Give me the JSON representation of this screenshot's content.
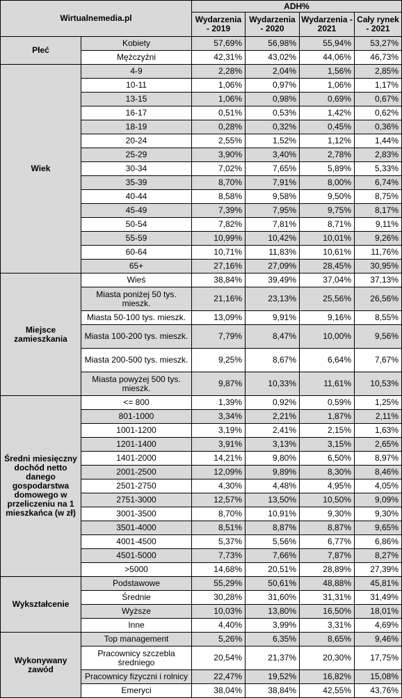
{
  "header": {
    "source": "Wirtualnemedia.pl",
    "metric": "ADH%",
    "columns": [
      "Wydarzenia - 2019",
      "Wydarzenia - 2020",
      "Wydarzenia - 2021",
      "Cały rynek - 2021"
    ]
  },
  "colors": {
    "gray": "#d9d9d9",
    "white": "#ffffff",
    "border": "#000000"
  },
  "groups": [
    {
      "label": "Płeć",
      "rows": [
        {
          "label": "Kobiety",
          "values": [
            "57,69%",
            "56,98%",
            "55,94%",
            "53,27%"
          ]
        },
        {
          "label": "Mężczyźni",
          "values": [
            "42,31%",
            "43,02%",
            "44,06%",
            "46,73%"
          ]
        }
      ]
    },
    {
      "label": "Wiek",
      "rows": [
        {
          "label": "4-9",
          "values": [
            "2,28%",
            "2,04%",
            "1,56%",
            "2,85%"
          ]
        },
        {
          "label": "10-11",
          "values": [
            "1,06%",
            "0,97%",
            "1,06%",
            "1,17%"
          ]
        },
        {
          "label": "13-15",
          "values": [
            "1,06%",
            "0,98%",
            "0,69%",
            "0,67%"
          ]
        },
        {
          "label": "16-17",
          "values": [
            "0,51%",
            "0,53%",
            "1,42%",
            "0,62%"
          ]
        },
        {
          "label": "18-19",
          "values": [
            "0,28%",
            "0,32%",
            "0,45%",
            "0,36%"
          ]
        },
        {
          "label": "20-24",
          "values": [
            "2,55%",
            "1,52%",
            "1,12%",
            "1,44%"
          ]
        },
        {
          "label": "25-29",
          "values": [
            "3,90%",
            "3,40%",
            "2,78%",
            "2,83%"
          ]
        },
        {
          "label": "30-34",
          "values": [
            "7,02%",
            "7,65%",
            "5,89%",
            "5,33%"
          ]
        },
        {
          "label": "35-39",
          "values": [
            "8,70%",
            "7,91%",
            "8,00%",
            "6,74%"
          ]
        },
        {
          "label": "40-44",
          "values": [
            "8,58%",
            "9,58%",
            "9,50%",
            "8,75%"
          ]
        },
        {
          "label": "45-49",
          "values": [
            "7,39%",
            "7,95%",
            "9,75%",
            "8,17%"
          ]
        },
        {
          "label": "50-54",
          "values": [
            "7,82%",
            "7,81%",
            "8,71%",
            "9,11%"
          ]
        },
        {
          "label": "55-59",
          "values": [
            "10,99%",
            "10,42%",
            "10,01%",
            "9,26%"
          ]
        },
        {
          "label": "60-64",
          "values": [
            "10,71%",
            "11,83%",
            "10,61%",
            "11,76%"
          ]
        },
        {
          "label": "65+",
          "values": [
            "27,16%",
            "27,09%",
            "28,45%",
            "30,95%"
          ]
        }
      ]
    },
    {
      "label": "Miejsce zamieszkania",
      "rows": [
        {
          "label": "Wieś",
          "values": [
            "38,84%",
            "39,49%",
            "37,04%",
            "37,13%"
          ]
        },
        {
          "label": "Miasta poniżej 50 tys. mieszk.",
          "values": [
            "21,16%",
            "23,13%",
            "25,56%",
            "26,56%"
          ]
        },
        {
          "label": "Miasta 50-100 tys. mieszk.",
          "values": [
            "13,09%",
            "9,91%",
            "9,16%",
            "8,55%"
          ]
        },
        {
          "label": "Miasta 100-200 tys. mieszk.",
          "values": [
            "7,79%",
            "8,47%",
            "10,00%",
            "9,56%"
          ]
        },
        {
          "label": "Miasta 200-500 tys. mieszk.",
          "values": [
            "9,25%",
            "8,67%",
            "6,64%",
            "7,67%"
          ]
        },
        {
          "label": "Miasta powyżej 500 tys. mieszk.",
          "values": [
            "9,87%",
            "10,33%",
            "11,61%",
            "10,53%"
          ]
        }
      ]
    },
    {
      "label": "Średni miesięczny dochód netto danego gospodarstwa domowego w przeliczeniu na 1 mieszkańca (w zł)",
      "rows": [
        {
          "label": "<= 800",
          "values": [
            "1,39%",
            "0,92%",
            "0,59%",
            "1,25%"
          ]
        },
        {
          "label": "801-1000",
          "values": [
            "3,34%",
            "2,21%",
            "1,87%",
            "2,11%"
          ]
        },
        {
          "label": "1001-1200",
          "values": [
            "3,19%",
            "2,41%",
            "2,15%",
            "1,63%"
          ]
        },
        {
          "label": "1201-1400",
          "values": [
            "3,91%",
            "3,13%",
            "3,15%",
            "2,65%"
          ]
        },
        {
          "label": "1401-2000",
          "values": [
            "14,21%",
            "9,80%",
            "6,50%",
            "8,97%"
          ]
        },
        {
          "label": "2001-2500",
          "values": [
            "12,09%",
            "9,89%",
            "8,30%",
            "8,46%"
          ]
        },
        {
          "label": "2501-2750",
          "values": [
            "4,30%",
            "4,48%",
            "4,95%",
            "4,05%"
          ]
        },
        {
          "label": "2751-3000",
          "values": [
            "12,57%",
            "13,50%",
            "10,50%",
            "9,09%"
          ]
        },
        {
          "label": "3001-3500",
          "values": [
            "8,70%",
            "10,91%",
            "9,30%",
            "9,30%"
          ]
        },
        {
          "label": "3501-4000",
          "values": [
            "8,51%",
            "8,87%",
            "8,87%",
            "9,65%"
          ]
        },
        {
          "label": "4001-4500",
          "values": [
            "5,37%",
            "5,56%",
            "6,77%",
            "6,86%"
          ]
        },
        {
          "label": "4501-5000",
          "values": [
            "7,73%",
            "7,66%",
            "7,87%",
            "8,27%"
          ]
        },
        {
          "label": ">5000",
          "values": [
            "14,68%",
            "20,51%",
            "28,89%",
            "27,39%"
          ]
        }
      ]
    },
    {
      "label": "Wykształcenie",
      "rows": [
        {
          "label": "Podstawowe",
          "values": [
            "55,29%",
            "50,61%",
            "48,88%",
            "45,81%"
          ]
        },
        {
          "label": "Średnie",
          "values": [
            "30,28%",
            "31,60%",
            "31,31%",
            "31,49%"
          ]
        },
        {
          "label": "Wyższe",
          "values": [
            "10,03%",
            "13,80%",
            "16,50%",
            "18,01%"
          ]
        },
        {
          "label": "Inne",
          "values": [
            "4,40%",
            "3,99%",
            "3,31%",
            "4,69%"
          ]
        }
      ]
    },
    {
      "label": "Wykonywany zawód",
      "rows": [
        {
          "label": "Top management",
          "values": [
            "5,26%",
            "6,35%",
            "8,65%",
            "9,46%"
          ]
        },
        {
          "label": "Pracownicy szczebla średniego",
          "values": [
            "20,54%",
            "21,37%",
            "20,30%",
            "17,75%"
          ]
        },
        {
          "label": "Pracownicy fizyczni i rolnicy",
          "values": [
            "22,47%",
            "19,52%",
            "16,82%",
            "15,08%"
          ]
        },
        {
          "label": "Emeryci",
          "values": [
            "38,04%",
            "38,84%",
            "42,55%",
            "43,76%"
          ]
        }
      ]
    }
  ]
}
